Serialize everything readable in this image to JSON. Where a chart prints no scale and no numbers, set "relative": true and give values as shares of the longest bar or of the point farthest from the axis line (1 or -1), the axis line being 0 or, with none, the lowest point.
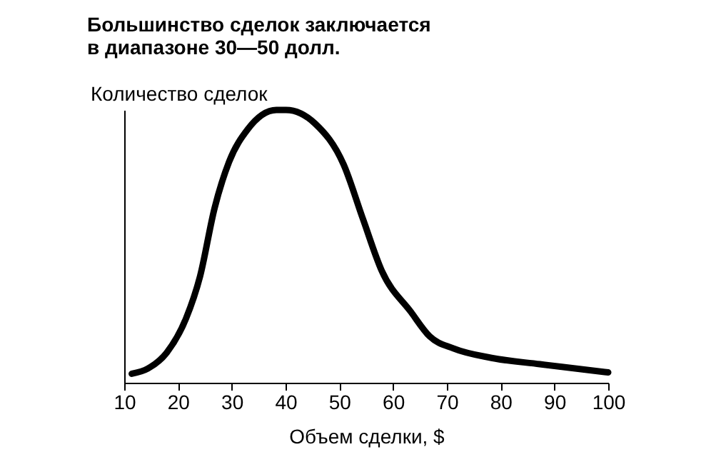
{
  "chart_data": {
    "type": "line",
    "title": "Большинство сделок заключается\nв диапазоне 30—50 долл.",
    "xlabel": "Объем сделки, $",
    "ylabel": "Количество сделок",
    "relative": true,
    "xlim": [
      10,
      100
    ],
    "xticks": [
      10,
      20,
      30,
      40,
      50,
      60,
      70,
      80,
      90,
      100
    ],
    "tick_labels": "x",
    "grid": false,
    "marker": "none",
    "line_style": "solid",
    "series": [
      {
        "color": "#000000",
        "x": [
          11.4,
          14.4,
          17.9,
          21.5,
          24.1,
          26.8,
          29.5,
          33.0,
          38.3,
          40.1,
          45.5,
          50.8,
          54.4,
          57.9,
          63.3,
          66.8,
          71.2,
          78.3,
          87.3,
          100
        ],
        "values": [
          0.033,
          0.052,
          0.11,
          0.236,
          0.39,
          0.64,
          0.81,
          0.93,
          1,
          1,
          0.95,
          0.8,
          0.6,
          0.41,
          0.26,
          0.17,
          0.126,
          0.091,
          0.068,
          0.038
        ]
      }
    ]
  }
}
